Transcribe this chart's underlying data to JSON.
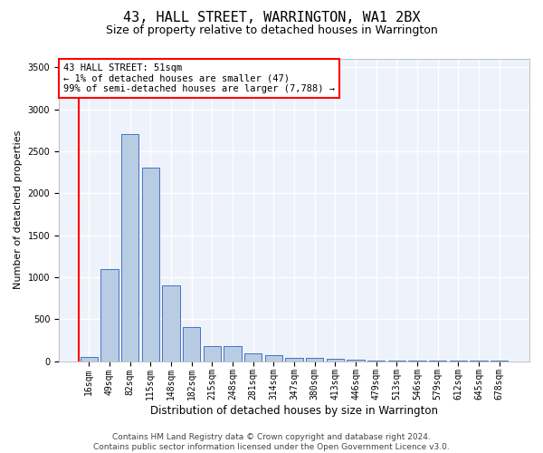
{
  "title": "43, HALL STREET, WARRINGTON, WA1 2BX",
  "subtitle": "Size of property relative to detached houses in Warrington",
  "xlabel": "Distribution of detached houses by size in Warrington",
  "ylabel": "Number of detached properties",
  "categories": [
    "16sqm",
    "49sqm",
    "82sqm",
    "115sqm",
    "148sqm",
    "182sqm",
    "215sqm",
    "248sqm",
    "281sqm",
    "314sqm",
    "347sqm",
    "380sqm",
    "413sqm",
    "446sqm",
    "479sqm",
    "513sqm",
    "546sqm",
    "579sqm",
    "612sqm",
    "645sqm",
    "678sqm"
  ],
  "values": [
    50,
    1100,
    2700,
    2300,
    900,
    400,
    180,
    175,
    90,
    70,
    42,
    38,
    28,
    18,
    10,
    7,
    5,
    4,
    2,
    1,
    1
  ],
  "bar_color": "#b8cce4",
  "bar_edge_color": "#4472c4",
  "annotation_text_line1": "43 HALL STREET: 51sqm",
  "annotation_text_line2": "← 1% of detached houses are smaller (47)",
  "annotation_text_line3": "99% of semi-detached houses are larger (7,788) →",
  "ylim": [
    0,
    3600
  ],
  "yticks": [
    0,
    500,
    1000,
    1500,
    2000,
    2500,
    3000,
    3500
  ],
  "background_color": "#eef2fa",
  "grid_color": "#ffffff",
  "footer_line1": "Contains HM Land Registry data © Crown copyright and database right 2024.",
  "footer_line2": "Contains public sector information licensed under the Open Government Licence v3.0.",
  "title_fontsize": 11,
  "subtitle_fontsize": 9,
  "xlabel_fontsize": 8.5,
  "ylabel_fontsize": 8,
  "tick_fontsize": 7,
  "footer_fontsize": 6.5,
  "annotation_fontsize": 7.5
}
